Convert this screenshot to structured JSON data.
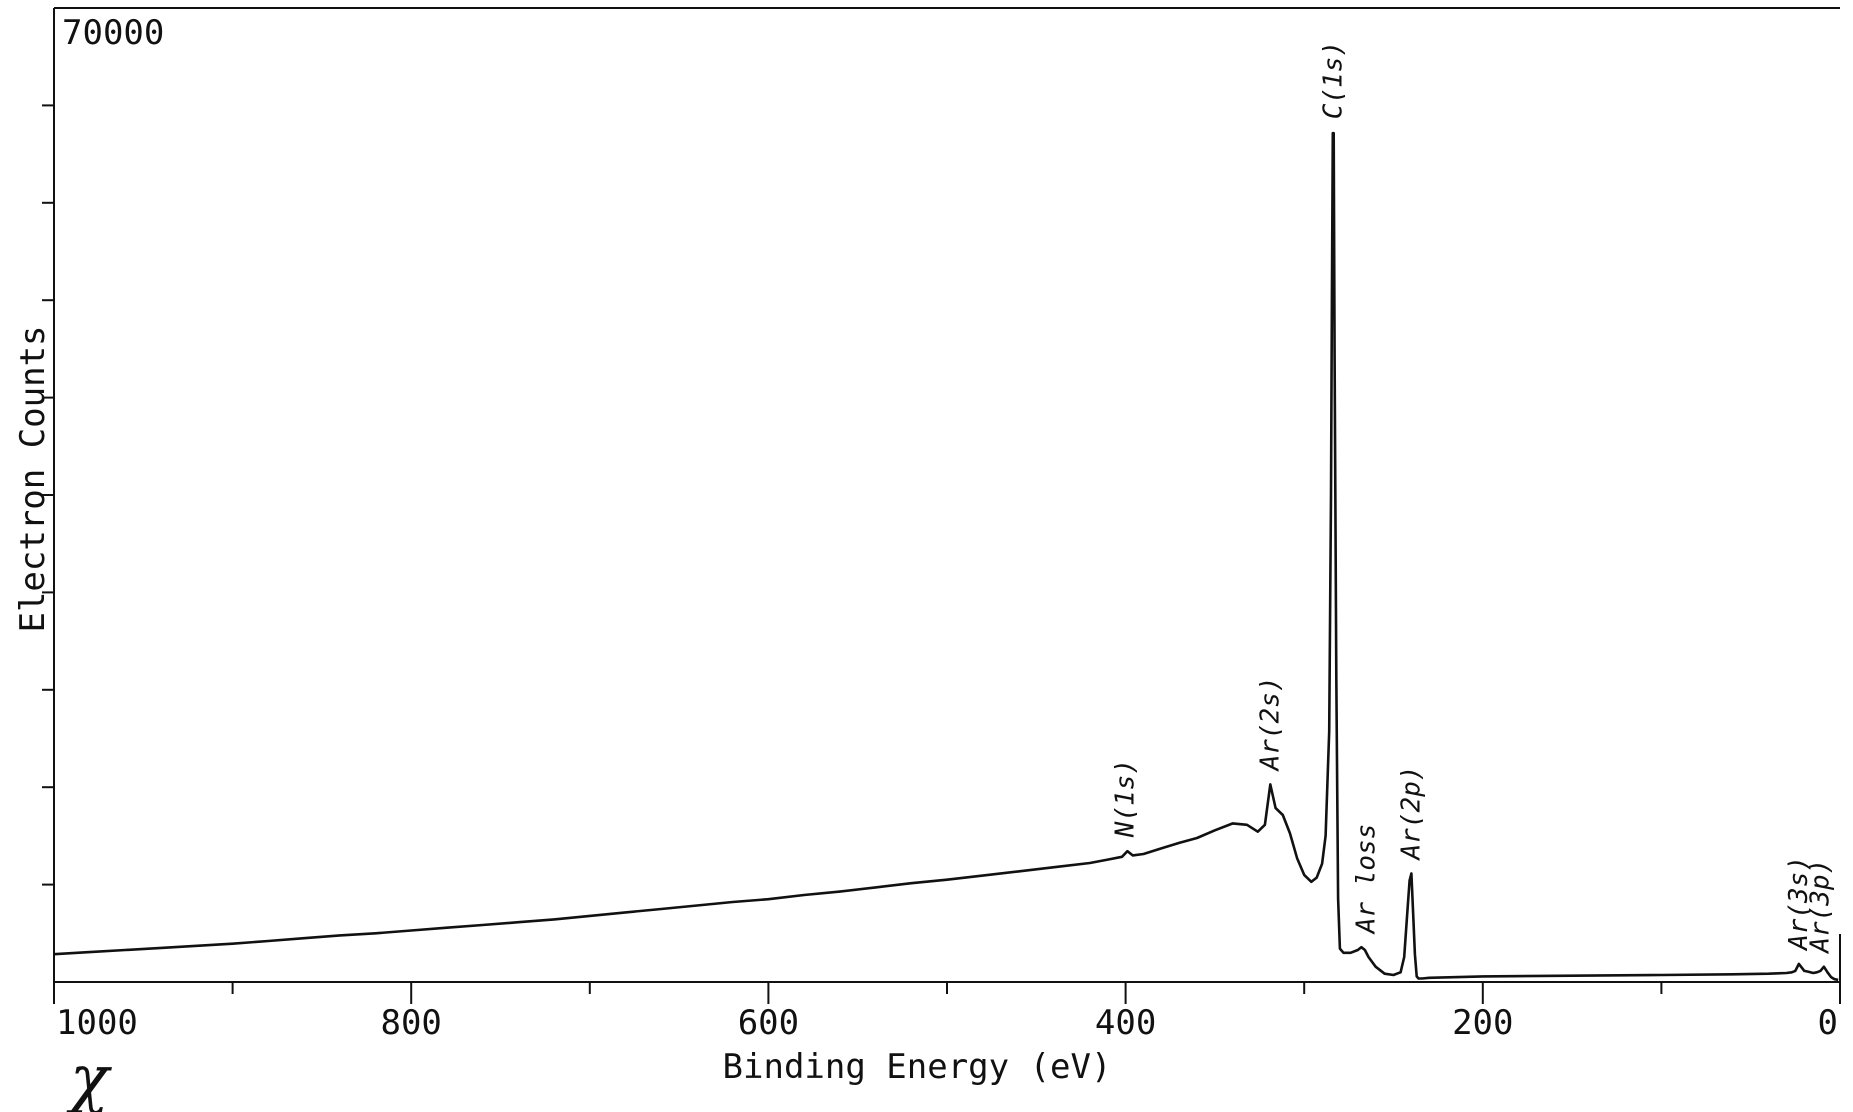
{
  "chart_data": {
    "type": "line",
    "xlabel": "Binding Energy (eV)",
    "ylabel": "Electron Counts",
    "xlim": [
      1000,
      0
    ],
    "ylim": [
      0,
      70000
    ],
    "y_max_label": "70000",
    "x_ticks": [
      1000,
      800,
      600,
      400,
      200,
      0
    ],
    "x_tick_labels": [
      "1000",
      "800",
      "600",
      "400",
      "200",
      "0"
    ],
    "x_minor_ticks": [
      900,
      700,
      500,
      300,
      100
    ],
    "y_ticks": [
      7000,
      14000,
      21000,
      28000,
      35000,
      42000,
      49000,
      56000,
      63000
    ],
    "grid": false,
    "series": [
      {
        "x": [
          1000,
          980,
          960,
          940,
          920,
          900,
          880,
          860,
          840,
          820,
          800,
          780,
          760,
          740,
          720,
          700,
          680,
          660,
          640,
          620,
          600,
          580,
          560,
          540,
          520,
          500,
          480,
          460,
          440,
          420,
          410,
          402,
          399,
          396,
          390,
          380,
          370,
          360,
          350,
          340,
          332,
          326,
          322,
          319,
          316,
          312,
          308,
          304,
          300,
          296,
          293,
          290,
          288,
          286,
          285,
          284.5,
          284,
          283.5,
          283,
          282,
          281,
          280,
          278,
          274,
          270,
          268,
          266,
          264,
          260,
          255,
          250,
          246,
          244,
          242,
          241,
          240,
          239,
          238,
          237,
          236,
          234,
          230,
          200,
          150,
          100,
          60,
          40,
          30,
          27,
          25,
          23,
          20,
          18,
          15,
          13,
          11,
          9,
          7,
          5,
          3,
          1
        ],
        "y": [
          2000,
          2150,
          2300,
          2450,
          2600,
          2750,
          2950,
          3150,
          3350,
          3500,
          3700,
          3900,
          4100,
          4300,
          4500,
          4750,
          5000,
          5250,
          5500,
          5750,
          5950,
          6250,
          6500,
          6800,
          7100,
          7350,
          7650,
          7950,
          8250,
          8550,
          8800,
          9000,
          9400,
          9100,
          9200,
          9600,
          10000,
          10350,
          10900,
          11400,
          11300,
          10800,
          11300,
          14200,
          12500,
          12000,
          10700,
          8900,
          7700,
          7200,
          7500,
          8500,
          10500,
          18000,
          35000,
          49000,
          61000,
          61000,
          45000,
          22000,
          6000,
          2400,
          2100,
          2100,
          2300,
          2500,
          2300,
          1800,
          1100,
          600,
          500,
          700,
          1800,
          5500,
          7300,
          7800,
          5000,
          2000,
          400,
          250,
          250,
          300,
          400,
          450,
          500,
          550,
          600,
          650,
          700,
          800,
          1300,
          800,
          750,
          650,
          700,
          800,
          1100,
          700,
          350,
          200,
          150
        ]
      }
    ],
    "annotations": [
      {
        "text": "N(1s)",
        "x": 400,
        "y": 9400
      },
      {
        "text": "Ar(2s)",
        "x": 319,
        "y": 14200
      },
      {
        "text": "C(1s)",
        "x": 283.5,
        "y": 61000
      },
      {
        "text": "Ar loss",
        "x": 265,
        "y": 2500
      },
      {
        "text": "Ar(2p)",
        "x": 240,
        "y": 7800
      },
      {
        "text": "Ar(3s)",
        "x": 23,
        "y": 1300
      },
      {
        "text": "Ar(3p)",
        "x": 11,
        "y": 1100
      }
    ],
    "corner_mark": "χ"
  }
}
